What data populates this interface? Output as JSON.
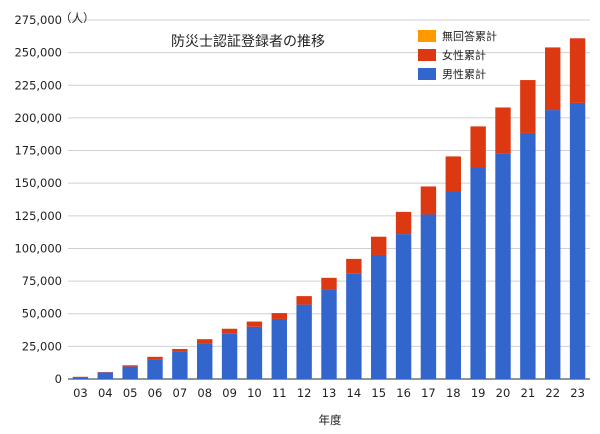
{
  "chart_data": {
    "type": "bar",
    "stacked": true,
    "title": "防災士認証登録者の推移",
    "ylabel": "（人）",
    "xlabel": "年度",
    "ylim": [
      0,
      275000
    ],
    "yticks": [
      0,
      25000,
      50000,
      75000,
      100000,
      125000,
      150000,
      175000,
      200000,
      225000,
      250000,
      275000
    ],
    "ytick_labels": [
      "0",
      "25,000",
      "50,000",
      "75,000",
      "100,000",
      "125,000",
      "150,000",
      "175,000",
      "200,000",
      "225,000",
      "250,000",
      "275,000"
    ],
    "categories": [
      "03",
      "04",
      "05",
      "06",
      "07",
      "08",
      "09",
      "10",
      "11",
      "12",
      "13",
      "14",
      "15",
      "16",
      "17",
      "18",
      "19",
      "20",
      "21",
      "22",
      "23"
    ],
    "grid": "horizontal",
    "legend_position": "top-right",
    "series": [
      {
        "name": "男性累計",
        "color": "#3366cc",
        "values": [
          1500,
          5000,
          9500,
          15000,
          21000,
          27500,
          35000,
          40000,
          46000,
          57000,
          68500,
          81000,
          95000,
          111000,
          126000,
          144000,
          162000,
          173000,
          188500,
          206000,
          211500
        ]
      },
      {
        "name": "女性累計",
        "color": "#dc3912",
        "values": [
          200,
          300,
          1000,
          2000,
          2000,
          3000,
          3500,
          4000,
          4500,
          6500,
          9000,
          11000,
          14000,
          17000,
          21500,
          26500,
          31500,
          35000,
          40500,
          48000,
          49500
        ]
      },
      {
        "name": "無回答累計",
        "color": "#ff9900",
        "values": [
          0,
          0,
          0,
          0,
          0,
          0,
          0,
          0,
          0,
          0,
          0,
          0,
          0,
          0,
          0,
          0,
          0,
          0,
          0,
          0,
          0
        ]
      }
    ]
  }
}
